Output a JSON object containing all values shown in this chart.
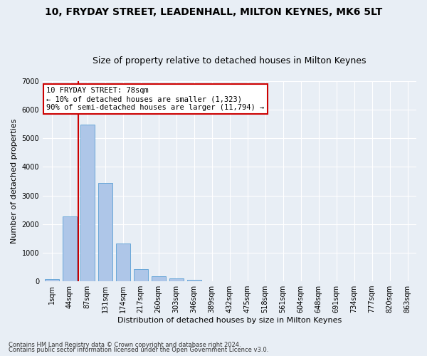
{
  "title": "10, FRYDAY STREET, LEADENHALL, MILTON KEYNES, MK6 5LT",
  "subtitle": "Size of property relative to detached houses in Milton Keynes",
  "xlabel": "Distribution of detached houses by size in Milton Keynes",
  "ylabel": "Number of detached properties",
  "footnote1": "Contains HM Land Registry data © Crown copyright and database right 2024.",
  "footnote2": "Contains public sector information licensed under the Open Government Licence v3.0.",
  "annotation_line1": "10 FRYDAY STREET: 78sqm",
  "annotation_line2": "← 10% of detached houses are smaller (1,323)",
  "annotation_line3": "90% of semi-detached houses are larger (11,794) →",
  "bar_labels": [
    "1sqm",
    "44sqm",
    "87sqm",
    "131sqm",
    "174sqm",
    "217sqm",
    "260sqm",
    "303sqm",
    "346sqm",
    "389sqm",
    "432sqm",
    "475sqm",
    "518sqm",
    "561sqm",
    "604sqm",
    "648sqm",
    "691sqm",
    "734sqm",
    "777sqm",
    "820sqm",
    "863sqm"
  ],
  "bar_values": [
    80,
    2280,
    5480,
    3440,
    1310,
    430,
    170,
    90,
    60,
    0,
    0,
    0,
    0,
    0,
    0,
    0,
    0,
    0,
    0,
    0,
    0
  ],
  "bar_color": "#aec6e8",
  "bar_edge_color": "#5a9fd4",
  "marker_color": "#cc0000",
  "annotation_box_color": "#ffffff",
  "annotation_box_edge_color": "#cc0000",
  "ylim": [
    0,
    7000
  ],
  "yticks": [
    0,
    1000,
    2000,
    3000,
    4000,
    5000,
    6000,
    7000
  ],
  "background_color": "#e8eef5",
  "grid_color": "#ffffff",
  "title_fontsize": 10,
  "subtitle_fontsize": 9,
  "axis_label_fontsize": 8,
  "tick_fontsize": 7,
  "annotation_fontsize": 7.5
}
